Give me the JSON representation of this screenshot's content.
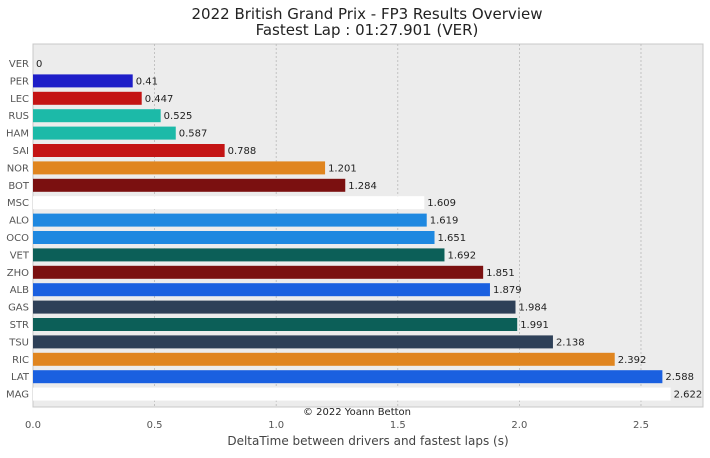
{
  "chart_data": {
    "type": "bar",
    "orientation": "horizontal",
    "title": "2022 British Grand Prix - FP3 Results Overview",
    "subtitle": "Fastest Lap : 01:27.901 (VER)",
    "xlabel": "DeltaTime between drivers and fastest laps (s)",
    "ylabel": "",
    "xlim": [
      0,
      2.755
    ],
    "xticks": [
      "0.0",
      "0.5",
      "1.0",
      "1.5",
      "2.0",
      "2.5"
    ],
    "grid": true,
    "annotation": "© 2022 Yoann Betton",
    "categories": [
      "VER",
      "PER",
      "LEC",
      "RUS",
      "HAM",
      "SAI",
      "NOR",
      "BOT",
      "MSC",
      "ALO",
      "OCO",
      "VET",
      "ZHO",
      "ALB",
      "GAS",
      "STR",
      "TSU",
      "RIC",
      "LAT",
      "MAG"
    ],
    "values": [
      0,
      0.41,
      0.447,
      0.525,
      0.587,
      0.788,
      1.201,
      1.284,
      1.609,
      1.619,
      1.651,
      1.692,
      1.851,
      1.879,
      1.984,
      1.991,
      2.138,
      2.392,
      2.588,
      2.622
    ],
    "value_labels": [
      "0",
      "0.41",
      "0.447",
      "0.525",
      "0.587",
      "0.788",
      "1.201",
      "1.284",
      "1.609",
      "1.619",
      "1.651",
      "1.692",
      "1.851",
      "1.879",
      "1.984",
      "1.991",
      "2.138",
      "2.392",
      "2.588",
      "2.622"
    ],
    "colors": [
      "#1e41ff",
      "#1e1ec8",
      "#c41414",
      "#1cbaa8",
      "#1cbaa8",
      "#c41414",
      "#e0851f",
      "#7b1010",
      "#ffffff",
      "#1e88e0",
      "#1e88e0",
      "#0c5f58",
      "#7b1010",
      "#1a60e0",
      "#2e4058",
      "#0c5f58",
      "#2e4058",
      "#e0851f",
      "#1a60e0",
      "#ffffff"
    ],
    "background": "#ececec"
  }
}
